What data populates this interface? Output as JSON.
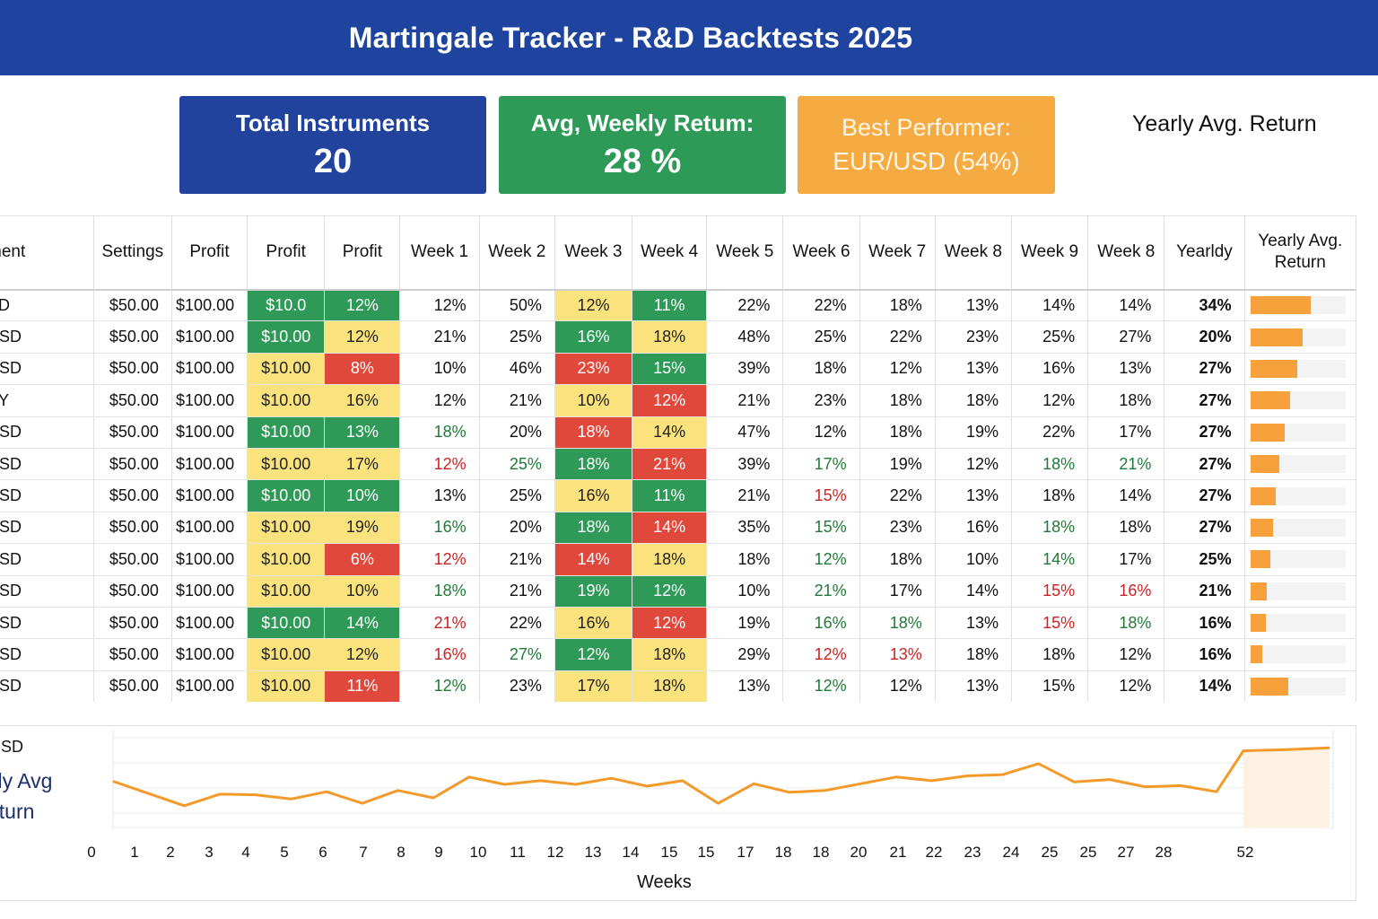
{
  "header": {
    "title": "Martingale Tracker - R&D Backtests 2025"
  },
  "kpis": {
    "instruments": {
      "label": "Total Instruments",
      "value": "20"
    },
    "weekly": {
      "label": "Avg, Weekly Retum:",
      "value": "28 %"
    },
    "best": {
      "label": "Best Performer:",
      "value": "EUR/USD (54%)"
    },
    "side_title": "Yearly Avg. Return"
  },
  "table": {
    "headers": [
      "ment",
      "Settings",
      "Profit",
      "Profit",
      "Profit",
      "Week 1",
      "Week 2",
      "Week 3",
      "Week 4",
      "Week 5",
      "Week 6",
      "Week 7",
      "Week 8",
      "Week 9",
      "Week 8",
      "Yearldy",
      "Yearly Avg. Return"
    ],
    "rows": [
      {
        "inst": "SD",
        "settings": "$50.00",
        "p1": "$100.00",
        "p2": "$10.0",
        "p3": "12%",
        "w": [
          "12%",
          "50%",
          "12%",
          "11%",
          "22%",
          "22%",
          "18%",
          "13%",
          "14%",
          "14%"
        ],
        "yearly": "34%",
        "bar": 0.64
      },
      {
        "inst": "USD",
        "settings": "$50.00",
        "p1": "$100.00",
        "p2": "$10.00",
        "p3": "12%",
        "w": [
          "21%",
          "25%",
          "16%",
          "18%",
          "48%",
          "25%",
          "22%",
          "23%",
          "25%",
          "27%"
        ],
        "yearly": "20%",
        "bar": 0.55
      },
      {
        "inst": "USD",
        "settings": "$50.00",
        "p1": "$100.00",
        "p2": "$10.00",
        "p3": "8%",
        "w": [
          "10%",
          "46%",
          "23%",
          "15%",
          "39%",
          "18%",
          "12%",
          "13%",
          "16%",
          "13%"
        ],
        "yearly": "27%",
        "bar": 0.49
      },
      {
        "inst": "PY",
        "settings": "$50.00",
        "p1": "$100.00",
        "p2": "$10.00",
        "p3": "16%",
        "w": [
          "12%",
          "21%",
          "10%",
          "12%",
          "21%",
          "23%",
          "18%",
          "18%",
          "12%",
          "18%"
        ],
        "yearly": "27%",
        "bar": 0.42
      },
      {
        "inst": "USD",
        "settings": "$50.00",
        "p1": "$100.00",
        "p2": "$10.00",
        "p3": "13%",
        "w": [
          "18%",
          "20%",
          "18%",
          "14%",
          "47%",
          "12%",
          "18%",
          "19%",
          "22%",
          "17%"
        ],
        "yearly": "27%",
        "bar": 0.36
      },
      {
        "inst": "USD",
        "settings": "$50.00",
        "p1": "$100.00",
        "p2": "$10.00",
        "p3": "17%",
        "w": [
          "12%",
          "25%",
          "18%",
          "21%",
          "39%",
          "17%",
          "19%",
          "12%",
          "18%",
          "21%"
        ],
        "yearly": "27%",
        "bar": 0.31
      },
      {
        "inst": "USD",
        "settings": "$50.00",
        "p1": "$100.00",
        "p2": "$10.00",
        "p3": "10%",
        "w": [
          "13%",
          "25%",
          "16%",
          "11%",
          "21%",
          "15%",
          "22%",
          "13%",
          "18%",
          "14%"
        ],
        "yearly": "27%",
        "bar": 0.27
      },
      {
        "inst": "USD",
        "settings": "$50.00",
        "p1": "$100.00",
        "p2": "$10.00",
        "p3": "19%",
        "w": [
          "16%",
          "20%",
          "18%",
          "14%",
          "35%",
          "15%",
          "23%",
          "16%",
          "18%",
          "18%"
        ],
        "yearly": "27%",
        "bar": 0.24
      },
      {
        "inst": "USD",
        "settings": "$50.00",
        "p1": "$100.00",
        "p2": "$10.00",
        "p3": "6%",
        "w": [
          "12%",
          "21%",
          "14%",
          "18%",
          "18%",
          "12%",
          "18%",
          "10%",
          "14%",
          "17%"
        ],
        "yearly": "25%",
        "bar": 0.21
      },
      {
        "inst": "USD",
        "settings": "$50.00",
        "p1": "$100.00",
        "p2": "$10.00",
        "p3": "10%",
        "w": [
          "18%",
          "21%",
          "19%",
          "12%",
          "10%",
          "21%",
          "17%",
          "14%",
          "15%",
          "16%"
        ],
        "yearly": "21%",
        "bar": 0.17
      },
      {
        "inst": "USD",
        "settings": "$50.00",
        "p1": "$100.00",
        "p2": "$10.00",
        "p3": "14%",
        "w": [
          "21%",
          "22%",
          "16%",
          "12%",
          "19%",
          "16%",
          "18%",
          "13%",
          "15%",
          "18%"
        ],
        "yearly": "16%",
        "bar": 0.16
      },
      {
        "inst": "USD",
        "settings": "$50.00",
        "p1": "$100.00",
        "p2": "$10.00",
        "p3": "12%",
        "w": [
          "16%",
          "27%",
          "12%",
          "18%",
          "29%",
          "12%",
          "13%",
          "18%",
          "18%",
          "12%"
        ],
        "yearly": "16%",
        "bar": 0.13
      },
      {
        "inst": "USD",
        "settings": "$50.00",
        "p1": "$100.00",
        "p2": "$10.00",
        "p3": "11%",
        "w": [
          "12%",
          "23%",
          "17%",
          "18%",
          "13%",
          "12%",
          "12%",
          "13%",
          "15%",
          "12%"
        ],
        "yearly": "14%",
        "bar": 0.4
      }
    ],
    "styles": [
      {
        "p2": "g",
        "p3": "g",
        "w": [
          "",
          "",
          "y",
          "g",
          "",
          "",
          "",
          "",
          "",
          ""
        ]
      },
      {
        "p2": "g",
        "p3": "y",
        "w": [
          "",
          "",
          "g",
          "y",
          "",
          "",
          "",
          "",
          "",
          ""
        ]
      },
      {
        "p2": "y",
        "p3": "r",
        "w": [
          "",
          "",
          "r",
          "g",
          "",
          "",
          "",
          "",
          "",
          ""
        ]
      },
      {
        "p2": "y",
        "p3": "y",
        "w": [
          "",
          "",
          "y",
          "r",
          "",
          "",
          "",
          "",
          "",
          ""
        ]
      },
      {
        "p2": "g",
        "p3": "g",
        "w": [
          "tg",
          "",
          "r",
          "y",
          "",
          "",
          "",
          "",
          "",
          ""
        ]
      },
      {
        "p2": "y",
        "p3": "y",
        "w": [
          "tr",
          "tg",
          "g",
          "r",
          "",
          "tg",
          "",
          "",
          "tg",
          "tg"
        ]
      },
      {
        "p2": "g",
        "p3": "g",
        "w": [
          "",
          "",
          "y",
          "g",
          "",
          "tr",
          "",
          "",
          "",
          ""
        ]
      },
      {
        "p2": "y",
        "p3": "y",
        "w": [
          "tg",
          "",
          "g",
          "r",
          "",
          "tg",
          "",
          "",
          "tg",
          ""
        ]
      },
      {
        "p2": "y",
        "p3": "r",
        "w": [
          "tr",
          "",
          "r",
          "y",
          "",
          "tg",
          "",
          "",
          "tg",
          ""
        ]
      },
      {
        "p2": "y",
        "p3": "y",
        "w": [
          "tg",
          "",
          "g",
          "g",
          "",
          "tg",
          "",
          "",
          "tr",
          "tr"
        ]
      },
      {
        "p2": "g",
        "p3": "g",
        "w": [
          "tr",
          "",
          "y",
          "r",
          "",
          "tg",
          "tg",
          "",
          "tr",
          "tg"
        ]
      },
      {
        "p2": "y",
        "p3": "y",
        "w": [
          "tr",
          "tg",
          "g",
          "y",
          "",
          "tr",
          "tr",
          "",
          "",
          ""
        ]
      },
      {
        "p2": "y",
        "p3": "r",
        "w": [
          "tg",
          "",
          "y",
          "y",
          "",
          "tg",
          "",
          "",
          "",
          ""
        ]
      }
    ]
  },
  "chart": {
    "label_top": "USD",
    "title_line1": "itly Avg",
    "title_line2": "eturn",
    "xlabel": "Weeks",
    "xticks": [
      "0",
      "1",
      "2",
      "3",
      "4",
      "5",
      "6",
      "7",
      "8",
      "9",
      "10",
      "11",
      "12",
      "13",
      "14",
      "15",
      "15",
      "17",
      "18",
      "18",
      "20",
      "21",
      "22",
      "23",
      "24",
      "25",
      "25",
      "27",
      "28",
      "52"
    ],
    "color": "#f39a2b"
  },
  "chart_data": {
    "type": "line",
    "xlabel": "Weeks",
    "x_ticks": [
      "0",
      "1",
      "2",
      "3",
      "4",
      "5",
      "6",
      "7",
      "8",
      "9",
      "10",
      "11",
      "12",
      "13",
      "14",
      "15",
      "15",
      "17",
      "18",
      "18",
      "20",
      "21",
      "22",
      "23",
      "24",
      "25",
      "25",
      "27",
      "28",
      "52"
    ],
    "series": [
      {
        "values": [
          0.55,
          0.35,
          0.15,
          0.34,
          0.33,
          0.26,
          0.38,
          0.19,
          0.4,
          0.28,
          0.62,
          0.5,
          0.56,
          0.5,
          0.6,
          0.47,
          0.56,
          0.19,
          0.51,
          0.37,
          0.4,
          0.51,
          0.62,
          0.56,
          0.64,
          0.66,
          0.84,
          0.54,
          0.58,
          0.46,
          0.48,
          0.38,
          1.05,
          1.07,
          1.1
        ]
      }
    ]
  }
}
